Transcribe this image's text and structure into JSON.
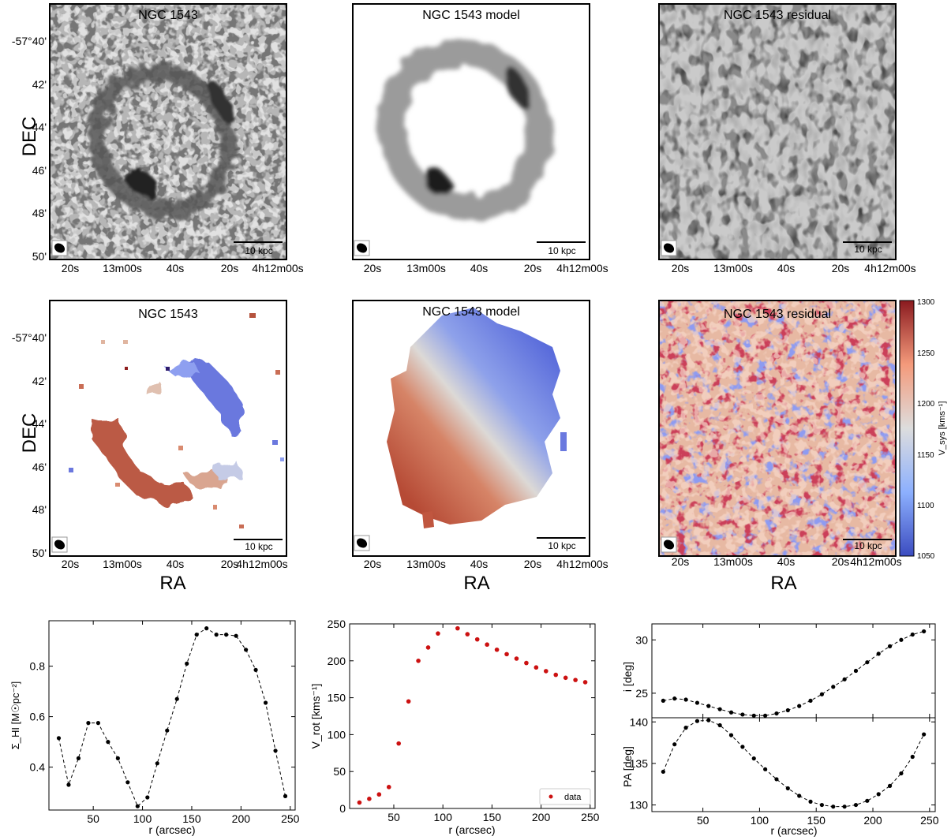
{
  "chart_data": [
    {
      "type": "heatmap",
      "panel": "moment0-data",
      "title": "NGC 1543",
      "ylabel": "DEC",
      "xticks": [
        "20s",
        "13m00s",
        "40s",
        "20s",
        "4h12m00s"
      ],
      "yticks": [
        "-57°40'",
        "42'",
        "44'",
        "46'",
        "48'",
        "50'"
      ],
      "scalebar": "10 kpc",
      "colormap": "greys"
    },
    {
      "type": "heatmap",
      "panel": "moment0-model",
      "title": "NGC 1543 model",
      "xticks": [
        "20s",
        "13m00s",
        "40s",
        "20s",
        "4h12m00s"
      ],
      "scalebar": "10 kpc",
      "colormap": "greys"
    },
    {
      "type": "heatmap",
      "panel": "moment0-residual",
      "title": "NGC 1543 residual",
      "xticks": [
        "20s",
        "13m00s",
        "40s",
        "20s",
        "4h12m00s"
      ],
      "scalebar": "10 kpc",
      "colormap": "greys"
    },
    {
      "type": "heatmap",
      "panel": "velocity-data",
      "title": "NGC 1543",
      "xlabel": "RA",
      "ylabel": "DEC",
      "xticks": [
        "20s",
        "13m00s",
        "40s",
        "20s",
        "4h12m00s"
      ],
      "yticks": [
        "-57°40'",
        "42'",
        "44'",
        "46'",
        "48'",
        "50'"
      ],
      "scalebar": "10 kpc",
      "colormap": "coolwarm"
    },
    {
      "type": "heatmap",
      "panel": "velocity-model",
      "title": "NGC 1543 model",
      "xlabel": "RA",
      "xticks": [
        "20s",
        "13m00s",
        "40s",
        "20s",
        "4h12m00s"
      ],
      "scalebar": "10 kpc",
      "colormap": "coolwarm"
    },
    {
      "type": "heatmap",
      "panel": "velocity-residual",
      "title": "NGC 1543 residual",
      "xlabel": "RA",
      "xticks": [
        "20s",
        "13m00s",
        "40s",
        "20s",
        "4h12m00s"
      ],
      "scalebar": "10 kpc",
      "colormap": "coolwarm",
      "colorbar": {
        "label": "V_sys [kms⁻¹]",
        "range": [
          1050,
          1300
        ],
        "ticks": [
          "1300",
          "1250",
          "1200",
          "1150",
          "1100",
          "1050"
        ]
      }
    },
    {
      "type": "line",
      "panel": "surface-density",
      "xlabel": "r (arcsec)",
      "ylabel": "Σ_HI [M☉pc⁻²]",
      "xlim": [
        5,
        255
      ],
      "ylim": [
        0.23,
        0.98
      ],
      "xticks": [
        50,
        100,
        150,
        200,
        250
      ],
      "yticks": [
        0.4,
        0.6,
        0.8
      ],
      "x": [
        15,
        25,
        35,
        45,
        55,
        65,
        75,
        85,
        95,
        105,
        115,
        125,
        135,
        145,
        155,
        165,
        175,
        185,
        195,
        205,
        215,
        225,
        235,
        245
      ],
      "y": [
        0.515,
        0.33,
        0.435,
        0.575,
        0.575,
        0.5,
        0.435,
        0.34,
        0.245,
        0.28,
        0.415,
        0.545,
        0.67,
        0.81,
        0.925,
        0.95,
        0.925,
        0.925,
        0.92,
        0.865,
        0.785,
        0.655,
        0.465,
        0.285
      ]
    },
    {
      "type": "scatter",
      "panel": "rotation-curve",
      "xlabel": "r (arcsec)",
      "ylabel": "V_rot [kms⁻¹]",
      "xlim": [
        5,
        255
      ],
      "ylim": [
        0,
        250
      ],
      "xticks": [
        50,
        100,
        150,
        200,
        250
      ],
      "yticks": [
        0,
        50,
        100,
        150,
        200,
        250
      ],
      "legend": "lower right",
      "series": [
        {
          "name": "data",
          "color": "#cc1111",
          "x": [
            15,
            25,
            35,
            45,
            55,
            65,
            75,
            85,
            95,
            115,
            125,
            135,
            145,
            155,
            165,
            175,
            185,
            195,
            205,
            215,
            225,
            235,
            245
          ],
          "y": [
            8,
            13,
            19,
            29,
            88,
            145,
            200,
            218,
            237,
            244,
            236,
            229,
            222,
            215,
            209,
            203,
            197,
            191,
            186,
            181,
            177,
            174,
            171
          ]
        }
      ]
    },
    {
      "type": "line",
      "panel": "inclination",
      "ylabel": "i [deg]",
      "xlim": [
        5,
        255
      ],
      "ylim": [
        22.7,
        31.5
      ],
      "xticks": [
        50,
        100,
        150,
        200,
        250
      ],
      "yticks": [
        25,
        30
      ],
      "x": [
        15,
        25,
        35,
        45,
        55,
        65,
        75,
        85,
        95,
        105,
        115,
        125,
        135,
        145,
        155,
        165,
        175,
        185,
        195,
        205,
        215,
        225,
        235,
        245
      ],
      "y": [
        24.3,
        24.5,
        24.4,
        24.1,
        23.8,
        23.5,
        23.2,
        23.0,
        22.9,
        22.9,
        23.1,
        23.4,
        23.8,
        24.3,
        24.9,
        25.6,
        26.3,
        27.1,
        27.9,
        28.7,
        29.4,
        30.0,
        30.5,
        30.8
      ]
    },
    {
      "type": "line",
      "panel": "position-angle",
      "xlabel": "r (arcsec)",
      "ylabel": "PA [deg]",
      "xlim": [
        5,
        255
      ],
      "ylim": [
        129.2,
        140.5
      ],
      "xticks": [
        50,
        100,
        150,
        200,
        250
      ],
      "yticks": [
        130,
        135,
        140
      ],
      "x": [
        15,
        25,
        35,
        45,
        55,
        65,
        75,
        85,
        95,
        105,
        115,
        125,
        135,
        145,
        155,
        165,
        175,
        185,
        195,
        205,
        215,
        225,
        235,
        245
      ],
      "y": [
        134.0,
        137.3,
        139.3,
        140.1,
        140.2,
        139.6,
        138.4,
        137.0,
        135.6,
        134.3,
        133.1,
        132.0,
        131.1,
        130.4,
        130.0,
        129.8,
        129.8,
        130.0,
        130.5,
        131.3,
        132.3,
        133.8,
        135.8,
        138.5
      ]
    }
  ]
}
